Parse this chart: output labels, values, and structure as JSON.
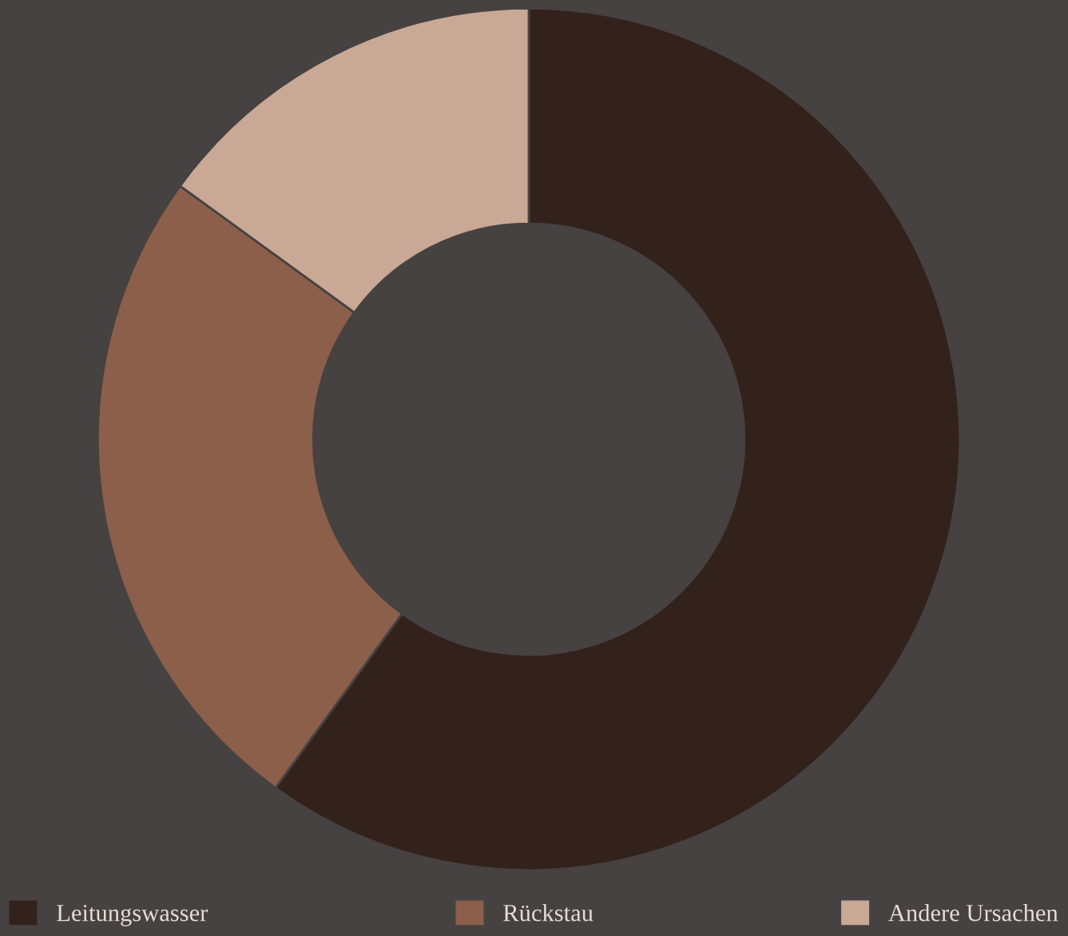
{
  "chart_data": {
    "type": "donut",
    "categories": [
      "Leitungswasser",
      "Rückstau",
      "Andere Ursachen"
    ],
    "values": [
      60,
      25,
      15
    ],
    "colors": [
      "#33221c",
      "#8b5f4a",
      "#c9a896"
    ],
    "legend": "bottom"
  }
}
